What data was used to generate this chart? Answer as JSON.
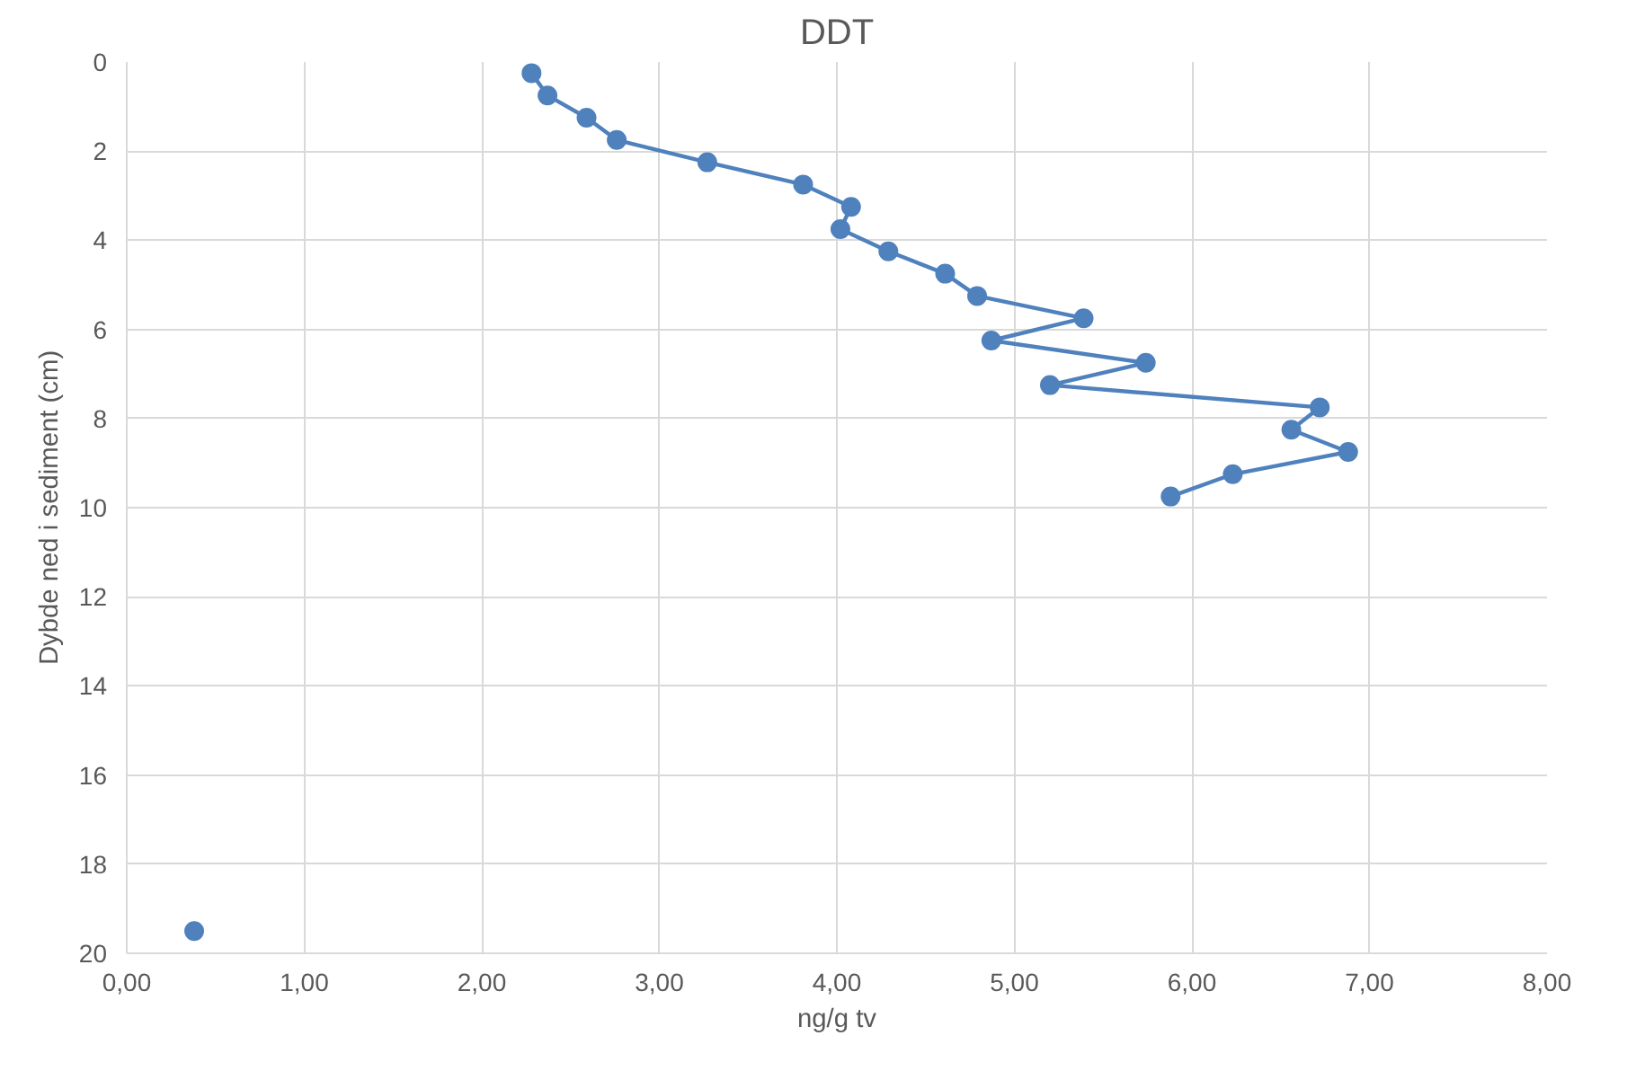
{
  "chart_data": {
    "type": "line",
    "title": "DDT",
    "xlabel": "ng/g tv",
    "ylabel": "Dybde ned i sediment (cm)",
    "xlim": [
      0,
      8
    ],
    "xticks": [
      {
        "value": 0,
        "label": "0,00"
      },
      {
        "value": 1,
        "label": "1,00"
      },
      {
        "value": 2,
        "label": "2,00"
      },
      {
        "value": 3,
        "label": "3,00"
      },
      {
        "value": 4,
        "label": "4,00"
      },
      {
        "value": 5,
        "label": "5,00"
      },
      {
        "value": 6,
        "label": "6,00"
      },
      {
        "value": 7,
        "label": "7,00"
      },
      {
        "value": 8,
        "label": "8,00"
      }
    ],
    "ylim": [
      20,
      0
    ],
    "yticks": [
      0,
      2,
      4,
      6,
      8,
      10,
      12,
      14,
      16,
      18,
      20
    ],
    "grid": true,
    "marker": "circle",
    "line_style": "solid",
    "series": [
      {
        "color": "#4f81bd",
        "x": [
          2.28,
          2.37,
          2.59,
          2.76,
          3.27,
          3.81,
          4.08,
          4.02,
          4.29,
          4.61,
          4.79,
          5.39,
          4.87,
          5.74,
          5.2,
          6.72,
          6.56,
          6.88,
          6.23,
          5.88
        ],
        "values": [
          0.25,
          0.75,
          1.25,
          1.75,
          2.25,
          2.75,
          3.25,
          3.75,
          4.25,
          4.75,
          5.25,
          5.75,
          6.25,
          6.75,
          7.25,
          7.75,
          8.25,
          8.75,
          9.25,
          9.75
        ]
      },
      {
        "type": "scatter",
        "color": "#4f81bd",
        "x": [
          0.38
        ],
        "values": [
          19.5
        ]
      }
    ]
  }
}
